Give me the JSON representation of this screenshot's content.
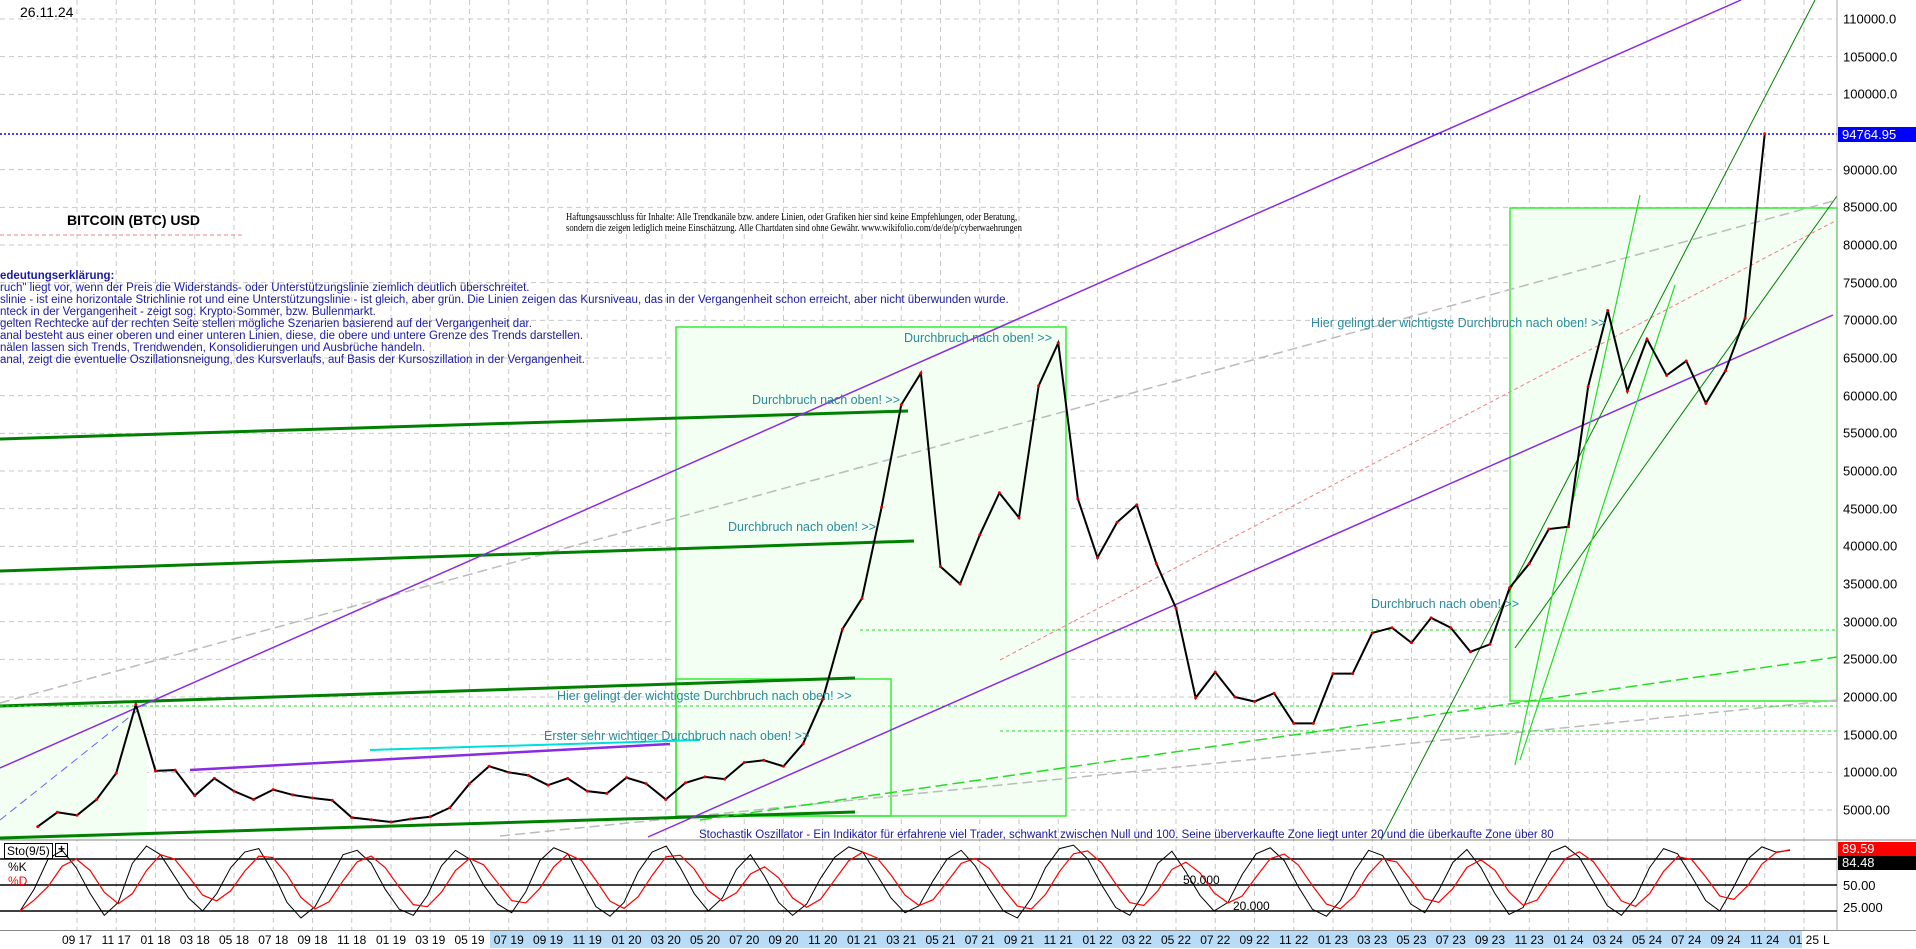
{
  "header": {
    "date": "26.11.24"
  },
  "title": "BITCOIN (BTC) USD",
  "disclaimer": [
    "Haftungsausschluss für Inhalte: Alle Trendkanäle bzw. andere Linien, oder Grafiken hier sind keine Empfehlungen, oder Beratung,",
    "sondern die zeigen lediglich meine  Einschätzung. Alle Chartdaten sind ohne Gewähr.  www.wikifolio.com/de/de/p/cyberwaehrungen"
  ],
  "legend": {
    "heading": "edeutungserklärung:",
    "lines": [
      "ruch\" liegt vor, wenn der Preis die Widerstands- oder Unterstützungslinie ziemlich deutlich überschreitet.",
      "slinie - ist eine horizontale Strichlinie rot und eine Unterstützungslinie - ist gleich, aber grün. Die Linien zeigen das Kursniveau, das in der Vergangenheit schon erreicht, aber nicht überwunden wurde.",
      "nteck in der Vergangenheit - zeigt sog. Krypto-Sommer, bzw. Bullenmarkt.",
      "gelten Rechtecke auf der rechten Seite stellen mögliche Szenarien basierend auf der Vergangenheit dar.",
      "anal besteht aus einer oberen und einer unteren Linien, diese, die obere und untere Grenze des Trends darstellen.",
      "nälen lassen sich Trends, Trendwenden, Konsolidierungen und Ausbrüche handeln.",
      "anal, zeigt die eventuelle Oszillationsneigung, des Kursverlaufs, auf Basis der Kursoszillation in der Vergangenheit."
    ]
  },
  "annotations": {
    "breakout_1": "Durchbruch nach oben! >>",
    "breakout_2": "Durchbruch nach oben! >>",
    "breakout_3": "Durchbruch nach oben! >>",
    "breakout_4": "Durchbruch nach oben! >>",
    "key_breakout_left": "Hier gelingt der wichtigste Durchbruch nach oben! >>",
    "key_breakout_right": "Hier gelingt der wichtigste Durchbruch nach oben! >>",
    "first_breakout": "Erster sehr wichtiger Durchbruch nach oben! >>",
    "stochastic_note": "Stochastik Oszillator - Ein Indikator für erfahrene viel Trader, schwankt zwischen Null und 100. Seine überverkaufte Zone liegt unter 20 und die überkaufte Zone über 80"
  },
  "colors": {
    "price": "#000000",
    "stoch_k": "#000000",
    "stoch_d": "#ff0000",
    "current_price_line": "#0000ff",
    "trend_purple": "#8a2be2",
    "support_green": "#008000",
    "zone_green": "#00e000",
    "annotation": "#2a8a9a"
  },
  "chart_data": [
    {
      "type": "line",
      "title": "BITCOIN (BTC) USD",
      "ylim": [
        0,
        112000
      ],
      "y_ticks": [
        "110000.0",
        "105000.0",
        "100000.0",
        "90000.00",
        "85000.00",
        "80000.00",
        "75000.00",
        "70000.00",
        "65000.00",
        "60000.00",
        "55000.00",
        "50000.00",
        "45000.00",
        "40000.00",
        "35000.00",
        "30000.00",
        "25000.00",
        "20000.00",
        "15000.00",
        "10000.00",
        "5000.00"
      ],
      "y_tick_values": [
        110000,
        105000,
        100000,
        90000,
        85000,
        80000,
        75000,
        70000,
        65000,
        60000,
        55000,
        50000,
        45000,
        40000,
        35000,
        30000,
        25000,
        20000,
        15000,
        10000,
        5000
      ],
      "current_price": "94764.95",
      "grid": true,
      "x_ticks": [
        "09 17",
        "11 17",
        "01 18",
        "03 18",
        "05 18",
        "07 18",
        "09 18",
        "11 18",
        "01 19",
        "03 19",
        "05 19",
        "07 19",
        "09 19",
        "11 19",
        "01 20",
        "03 20",
        "05 20",
        "07 20",
        "09 20",
        "11 20",
        "01 21",
        "03 21",
        "05 21",
        "07 21",
        "09 21",
        "11 21",
        "01 22",
        "03 22",
        "05 22",
        "07 22",
        "09 22",
        "11 22",
        "01 23",
        "03 23",
        "05 23",
        "07 23",
        "09 23",
        "11 23",
        "01 24",
        "03 24",
        "05 24",
        "07 24",
        "09 24",
        "11 24",
        "01 25"
      ],
      "x_axis_end_label": "L",
      "series": [
        {
          "dates": [
            "2017-07",
            "2017-08",
            "2017-09",
            "2017-10",
            "2017-11",
            "2017-12",
            "2018-01",
            "2018-02",
            "2018-03",
            "2018-04",
            "2018-05",
            "2018-06",
            "2018-07",
            "2018-08",
            "2018-09",
            "2018-10",
            "2018-11",
            "2018-12",
            "2019-01",
            "2019-02",
            "2019-03",
            "2019-04",
            "2019-05",
            "2019-06",
            "2019-07",
            "2019-08",
            "2019-09",
            "2019-10",
            "2019-11",
            "2019-12",
            "2020-01",
            "2020-02",
            "2020-03",
            "2020-04",
            "2020-05",
            "2020-06",
            "2020-07",
            "2020-08",
            "2020-09",
            "2020-10",
            "2020-11",
            "2020-12",
            "2021-01",
            "2021-02",
            "2021-03",
            "2021-04",
            "2021-05",
            "2021-06",
            "2021-07",
            "2021-08",
            "2021-09",
            "2021-10",
            "2021-11",
            "2021-12",
            "2022-01",
            "2022-02",
            "2022-03",
            "2022-04",
            "2022-05",
            "2022-06",
            "2022-07",
            "2022-08",
            "2022-09",
            "2022-10",
            "2022-11",
            "2022-12",
            "2023-01",
            "2023-02",
            "2023-03",
            "2023-04",
            "2023-05",
            "2023-06",
            "2023-07",
            "2023-08",
            "2023-09",
            "2023-10",
            "2023-11",
            "2023-12",
            "2024-01",
            "2024-02",
            "2024-03",
            "2024-04",
            "2024-05",
            "2024-06",
            "2024-07",
            "2024-08",
            "2024-09",
            "2024-10",
            "2024-11"
          ],
          "close": [
            2800,
            4700,
            4300,
            6400,
            9900,
            19000,
            10200,
            10300,
            6900,
            9200,
            7500,
            6400,
            7700,
            7000,
            6600,
            6300,
            4000,
            3700,
            3400,
            3800,
            4100,
            5300,
            8500,
            10800,
            10000,
            9600,
            8300,
            9200,
            7500,
            7200,
            9300,
            8500,
            6400,
            8600,
            9400,
            9100,
            11300,
            11600,
            10800,
            13800,
            19700,
            29000,
            33100,
            45200,
            58800,
            63000,
            37300,
            35000,
            41500,
            47100,
            43800,
            61300,
            67000,
            46300,
            38500,
            43200,
            45500,
            37700,
            31800,
            19900,
            23300,
            20000,
            19400,
            20500,
            16500,
            16500,
            23100,
            23100,
            28500,
            29200,
            27200,
            30500,
            29200,
            26000,
            27000,
            34500,
            37700,
            42300,
            42600,
            61200,
            71300,
            60600,
            67500,
            62700,
            64600,
            59000,
            63300,
            70300,
            94764.95
          ]
        }
      ]
    },
    {
      "type": "line",
      "title": "Sto(9/5)",
      "series_labels": [
        "%K",
        "%D"
      ],
      "ylim": [
        0,
        100
      ],
      "levels": [
        "50.000",
        "20.000"
      ],
      "level_values": [
        80,
        50,
        20
      ],
      "y_ticks": [
        "50.00",
        "25.000"
      ],
      "last_k": "89.59",
      "last_d": "84.48",
      "k": [
        20,
        45,
        80,
        90,
        70,
        40,
        15,
        30,
        75,
        95,
        85,
        60,
        35,
        20,
        40,
        70,
        88,
        92,
        65,
        30,
        12,
        25,
        55,
        85,
        90,
        75,
        45,
        22,
        15,
        38,
        72,
        90,
        80,
        50,
        28,
        18,
        42,
        78,
        93,
        86,
        55,
        25,
        14,
        30,
        65,
        88,
        95,
        70,
        40,
        20,
        35,
        68,
        85,
        60,
        30,
        15,
        28,
        58,
        82,
        94,
        88,
        62,
        35,
        18,
        26,
        55,
        80,
        90,
        72,
        45,
        20,
        12,
        35,
        70,
        92,
        96,
        80,
        50,
        24,
        15,
        40,
        75,
        89,
        65,
        38,
        20,
        30,
        62,
        86,
        93,
        78,
        48,
        22,
        14,
        32,
        66,
        90,
        84,
        56,
        28,
        18,
        44,
        76,
        91,
        70,
        40,
        16,
        24,
        58,
        88,
        95,
        82,
        54,
        26,
        15,
        35,
        70,
        92,
        86,
        60,
        32,
        20,
        48,
        80,
        94,
        88,
        90
      ]
    }
  ]
}
